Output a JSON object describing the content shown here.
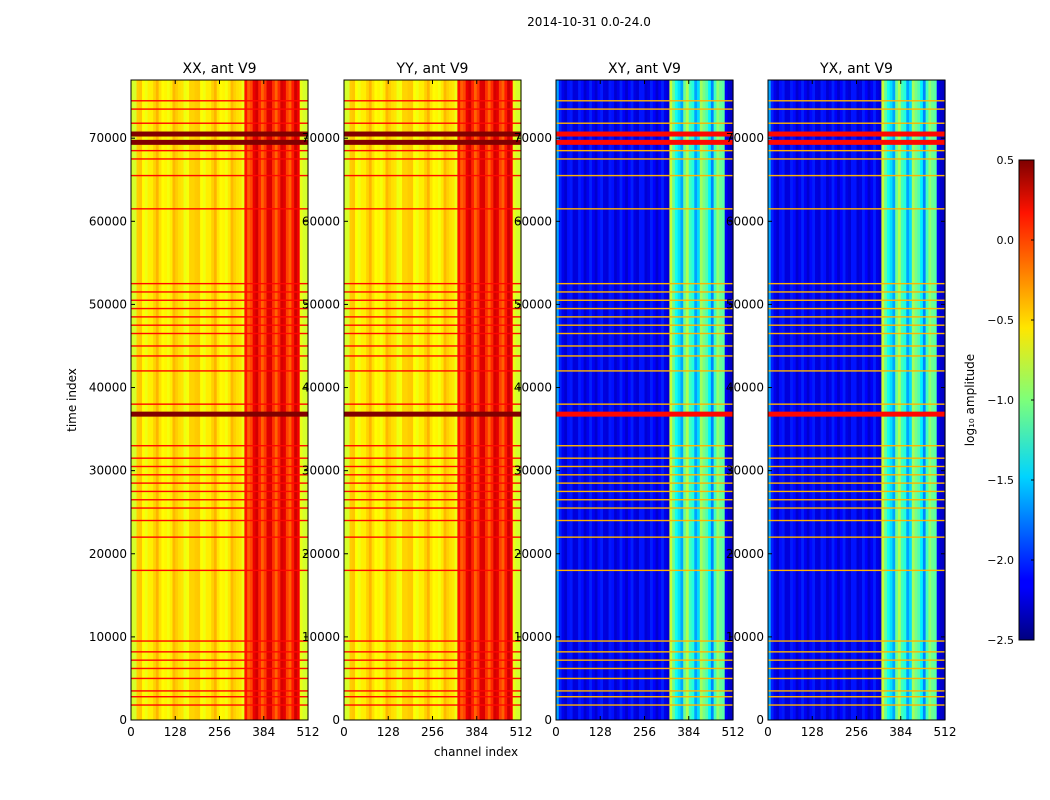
{
  "chart_data": {
    "type": "heatmap",
    "suptitle": "2014-10-31 0.0-24.0",
    "xlabel": "channel index",
    "ylabel": "time index",
    "xlim": [
      0,
      512
    ],
    "ylim": [
      0,
      77000
    ],
    "x_ticks": [
      0,
      128,
      256,
      384,
      512
    ],
    "y_ticks": [
      0,
      10000,
      20000,
      30000,
      40000,
      50000,
      60000,
      70000
    ],
    "panels": [
      {
        "id": "XX",
        "title": "XX, ant V9",
        "level": "high",
        "show_ytick_labels": true
      },
      {
        "id": "YY",
        "title": "YY, ant V9",
        "level": "high",
        "show_ytick_labels": true
      },
      {
        "id": "XY",
        "title": "XY, ant V9",
        "level": "low",
        "show_ytick_labels": true
      },
      {
        "id": "YX",
        "title": "YX, ant V9",
        "level": "low",
        "show_ytick_labels": true
      }
    ],
    "approx_levels_log10": {
      "XX_YY_background": -0.5,
      "XX_YY_band_384_512": 0.2,
      "XY_YX_background": -2.1,
      "XY_YX_band_384_512": -1.0
    },
    "rfi_time_rows": [
      1800,
      2800,
      3500,
      5000,
      6200,
      7200,
      8200,
      9500,
      18000,
      22000,
      24000,
      25500,
      26500,
      27500,
      28500,
      29500,
      30500,
      31500,
      33000,
      36800,
      38000,
      42000,
      43800,
      45000,
      46500,
      47500,
      48500,
      49500,
      50500,
      51500,
      52500,
      61500,
      65500,
      67500,
      68500,
      69500,
      70500,
      71800,
      73500,
      74500
    ],
    "strong_rows": [
      36800,
      69500,
      70500
    ],
    "colorbar": {
      "label": "log₁₀ amplitude",
      "min": -2.5,
      "max": 0.5,
      "ticks": [
        -2.5,
        -2.0,
        -1.5,
        -1.0,
        -0.5,
        0.0,
        0.5
      ],
      "tick_labels": [
        "−2.5",
        "−2.0",
        "−1.5",
        "−1.0",
        "−0.5",
        "0.0",
        "0.5"
      ],
      "colormap": "jet"
    }
  }
}
